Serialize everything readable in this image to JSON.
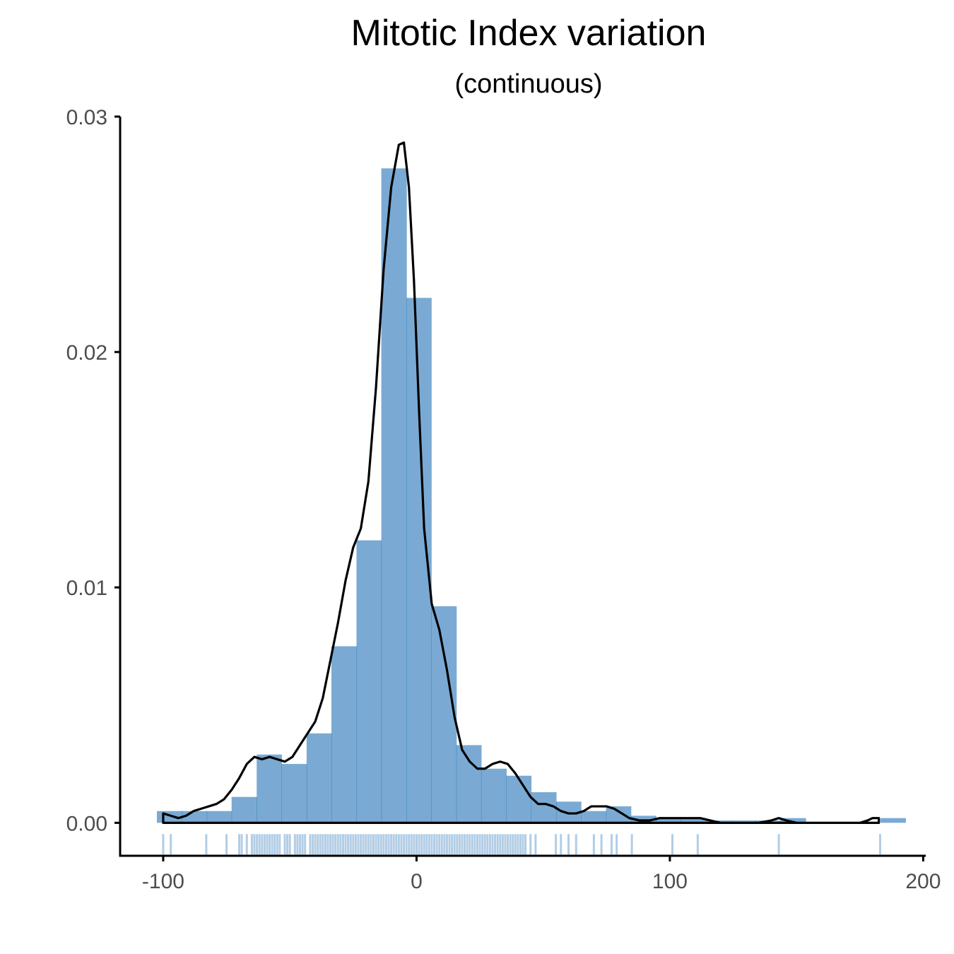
{
  "chart_data": {
    "type": "histogram",
    "title": "Mitotic Index variation",
    "subtitle": "(continuous)",
    "xlabel": "",
    "ylabel": "",
    "xlim": [
      -117,
      201
    ],
    "ylim": [
      -0.0014,
      0.03
    ],
    "x_ticks": [
      -100,
      0,
      100,
      200
    ],
    "x_tick_labels": [
      "-100",
      "0",
      "100",
      "200"
    ],
    "y_ticks": [
      0,
      0.01,
      0.02,
      0.03
    ],
    "y_tick_labels": [
      "0.00",
      "0.01",
      "0.02",
      "0.03"
    ],
    "grid": false,
    "legend": "none",
    "colors": {
      "bars": "#2171b5",
      "bar_opacity": 0.6,
      "density_line": "#000000",
      "rug": "#2171b5"
    },
    "histogram": {
      "bin_edges": [
        -102.5,
        -92.7,
        -82.8,
        -73,
        -63.1,
        -53.3,
        -43.4,
        -33.6,
        -23.7,
        -13.9,
        -4,
        5.8,
        15.7,
        25.5,
        35.4,
        45.2,
        55.1,
        64.9,
        74.8,
        84.6,
        94.5,
        104.3,
        114.2,
        124,
        133.9,
        143.7,
        153.6,
        163.4,
        173.3,
        183.1,
        193
      ],
      "density": [
        0.0005,
        0.0005,
        0.0005,
        0.0011,
        0.0029,
        0.0025,
        0.0038,
        0.0075,
        0.012,
        0.0278,
        0.0223,
        0.0092,
        0.0033,
        0.0023,
        0.002,
        0.0013,
        0.0009,
        0.0005,
        0.0007,
        0.0003,
        0.0002,
        0.0002,
        0.0001,
        0.0001,
        0.0001,
        0.0002,
        0.0,
        0.0,
        0.0,
        0.0002
      ]
    },
    "density_curve": {
      "x": [
        -100,
        -97,
        -94,
        -91,
        -88,
        -85,
        -82,
        -79,
        -76,
        -73,
        -70,
        -67,
        -64,
        -61,
        -58,
        -55,
        -52,
        -49,
        -46,
        -43,
        -40,
        -37,
        -34,
        -31,
        -28,
        -25,
        -22,
        -19,
        -16,
        -13,
        -10,
        -7,
        -5,
        -3,
        -1,
        1,
        3,
        6,
        9,
        12,
        15,
        18,
        21,
        24,
        27,
        30,
        33,
        36,
        39,
        42,
        45,
        48,
        51,
        54,
        57,
        60,
        63,
        66,
        69,
        72,
        75,
        78,
        81,
        84,
        88,
        92,
        96,
        100,
        104,
        108,
        112,
        116,
        120,
        125,
        130,
        135,
        140,
        143,
        146,
        150,
        155,
        160,
        165,
        170,
        175,
        178,
        180,
        182.5
      ],
      "y": [
        0.0004,
        0.0003,
        0.0002,
        0.0003,
        0.0005,
        0.0006,
        0.0007,
        0.0008,
        0.001,
        0.0014,
        0.0019,
        0.0025,
        0.0028,
        0.0027,
        0.0028,
        0.0027,
        0.0026,
        0.0028,
        0.0033,
        0.0038,
        0.0043,
        0.0053,
        0.0069,
        0.0085,
        0.0103,
        0.0117,
        0.0125,
        0.0145,
        0.0185,
        0.0235,
        0.027,
        0.0288,
        0.0289,
        0.027,
        0.023,
        0.0175,
        0.0125,
        0.0093,
        0.0082,
        0.0065,
        0.0045,
        0.0031,
        0.0026,
        0.0023,
        0.0023,
        0.0025,
        0.0026,
        0.0025,
        0.0021,
        0.0016,
        0.0011,
        0.0008,
        0.0008,
        0.0007,
        0.0005,
        0.0004,
        0.0004,
        0.0005,
        0.0007,
        0.0007,
        0.0007,
        0.0006,
        0.0004,
        0.0002,
        0.0001,
        0.0001,
        0.0002,
        0.0002,
        0.0002,
        0.0002,
        0.0002,
        0.0001,
        0.0,
        0.0,
        0.0,
        0.0,
        0.0001,
        0.0002,
        0.0001,
        0.0,
        0.0,
        0.0,
        0.0,
        0.0,
        0.0,
        0.0001,
        0.0002,
        0.0002
      ]
    },
    "rug": [
      -100,
      -97,
      -83,
      -75,
      -70,
      -69,
      -67,
      -65,
      -64,
      -63,
      -62,
      -61,
      -60,
      -59,
      -58,
      -57,
      -56,
      -55,
      -54,
      -52,
      -51,
      -50,
      -48,
      -47,
      -46,
      -45,
      -44,
      -42,
      -41,
      -40,
      -39,
      -38,
      -37,
      -36,
      -35,
      -34,
      -33,
      -32,
      -31,
      -30,
      -29,
      -28,
      -27,
      -26,
      -25,
      -24,
      -23,
      -22,
      -21,
      -20,
      -19,
      -18,
      -17,
      -16,
      -15,
      -14,
      -13,
      -12,
      -11,
      -10,
      -9,
      -8,
      -7,
      -6,
      -5,
      -4,
      -3,
      -2,
      -1,
      0,
      1,
      2,
      3,
      4,
      5,
      6,
      7,
      8,
      9,
      10,
      11,
      12,
      13,
      14,
      15,
      16,
      17,
      18,
      19,
      20,
      21,
      22,
      23,
      24,
      25,
      26,
      27,
      28,
      29,
      30,
      31,
      32,
      33,
      34,
      35,
      36,
      37,
      38,
      39,
      40,
      41,
      42,
      43,
      45,
      47,
      55,
      57,
      60,
      63,
      70,
      73,
      77,
      79,
      85,
      101,
      111,
      143,
      183
    ]
  }
}
